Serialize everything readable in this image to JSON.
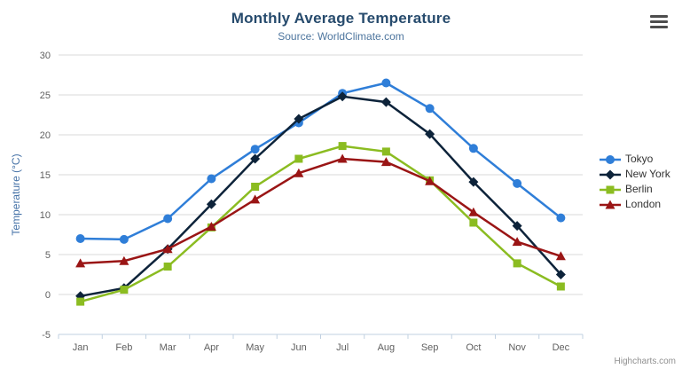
{
  "chart": {
    "credits_label": "Highcharts.com",
    "context_menu_icon": "hamburger-menu-icon"
  },
  "chart_data": {
    "type": "line",
    "title": "Monthly Average Temperature",
    "subtitle": "Source: WorldClimate.com",
    "categories": [
      "Jan",
      "Feb",
      "Mar",
      "Apr",
      "May",
      "Jun",
      "Jul",
      "Aug",
      "Sep",
      "Oct",
      "Nov",
      "Dec"
    ],
    "xlabel": "",
    "ylabel": "Temperature (°C)",
    "ylim": [
      -5,
      30
    ],
    "ytick_interval": 5,
    "yticks": [
      -5,
      0,
      5,
      10,
      15,
      20,
      25,
      30
    ],
    "grid": true,
    "legend_position": "right",
    "series": [
      {
        "name": "Tokyo",
        "color": "#2f7ed8",
        "marker": "circle",
        "values": [
          7.0,
          6.9,
          9.5,
          14.5,
          18.2,
          21.5,
          25.2,
          26.5,
          23.3,
          18.3,
          13.9,
          9.6
        ]
      },
      {
        "name": "New York",
        "color": "#0d233a",
        "marker": "diamond",
        "values": [
          -0.2,
          0.8,
          5.7,
          11.3,
          17.0,
          22.0,
          24.8,
          24.1,
          20.1,
          14.1,
          8.6,
          2.5
        ]
      },
      {
        "name": "Berlin",
        "color": "#8bbc21",
        "marker": "square",
        "values": [
          -0.9,
          0.6,
          3.5,
          8.4,
          13.5,
          17.0,
          18.6,
          17.9,
          14.3,
          9.0,
          3.9,
          1.0
        ]
      },
      {
        "name": "London",
        "color": "#9a1515",
        "marker": "triangle",
        "values": [
          3.9,
          4.2,
          5.7,
          8.5,
          11.9,
          15.2,
          17.0,
          16.6,
          14.2,
          10.3,
          6.6,
          4.8
        ]
      }
    ],
    "styles": {
      "grid_color": "#d8d8d8",
      "axis_color": "#c0d0e0",
      "label_color": "#606060",
      "yaxis_title_color": "#4572a7",
      "title_color": "#274b6d",
      "subtitle_color": "#4d759e",
      "legend_text_color": "#333333",
      "credits_color": "#8f8f8f"
    }
  }
}
